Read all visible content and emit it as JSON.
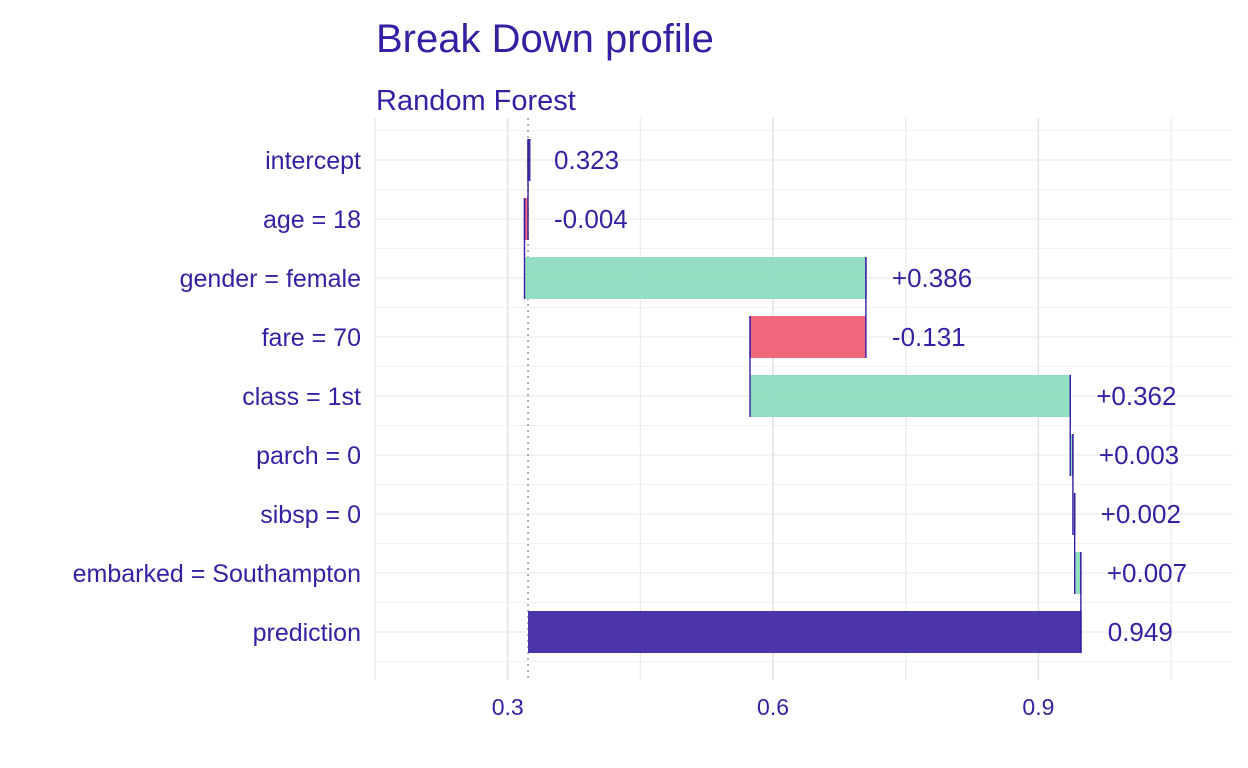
{
  "chart_data": {
    "type": "bar",
    "title": "Break Down profile",
    "subtitle": "Random Forest",
    "categories": [
      "intercept",
      "age = 18",
      "gender = female",
      "fare = 70",
      "class = 1st",
      "parch = 0",
      "sibsp = 0",
      "embarked = Southampton",
      "prediction"
    ],
    "contributions": [
      0.323,
      -0.004,
      0.386,
      -0.131,
      0.362,
      0.003,
      0.002,
      0.007,
      0.949
    ],
    "value_labels": [
      "0.323",
      "-0.004",
      "+0.386",
      "-0.131",
      "+0.362",
      "+0.003",
      "+0.002",
      "+0.007",
      "0.949"
    ],
    "baseline": 0.323,
    "x_ticks": [
      0.3,
      0.6,
      0.9
    ],
    "x_tick_labels": [
      "0.3",
      "0.6",
      "0.9"
    ],
    "xlim": [
      0.15,
      1.12
    ],
    "grid": true,
    "colors": {
      "positive": "#8bdcbe",
      "negative": "#f05a71",
      "prediction": "#371ea3",
      "text": "#371ea3",
      "grid": "#e6e6e6",
      "baseline_line": "#9a9aa8"
    }
  }
}
